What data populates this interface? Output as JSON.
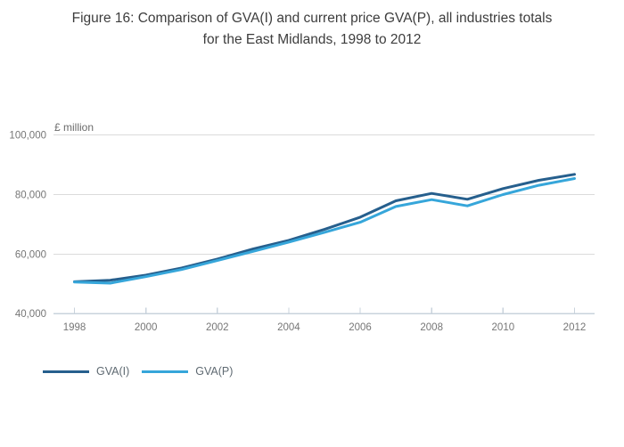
{
  "title": "Figure 16: Comparison of GVA(I) and current price GVA(P), all industries totals for the East Midlands, 1998 to 2012",
  "chart_data": {
    "type": "line",
    "title": "Figure 16: Comparison of GVA(I) and current price GVA(P), all industries totals for the East Midlands, 1998 to 2012",
    "y_axis_title": "£ million",
    "x": [
      1998,
      1999,
      2000,
      2001,
      2002,
      2003,
      2004,
      2005,
      2006,
      2007,
      2008,
      2009,
      2010,
      2011,
      2012
    ],
    "xtick_labels": [
      "1998",
      "2000",
      "2002",
      "2004",
      "2006",
      "2008",
      "2010",
      "2012"
    ],
    "ytick_values": [
      40000,
      60000,
      80000,
      100000
    ],
    "ytick_labels": [
      "40,000",
      "60,000",
      "80,000",
      "100,000"
    ],
    "ylim": [
      40000,
      100000
    ],
    "grid": "horizontal-only",
    "legend_position": "bottom-left",
    "series": [
      {
        "name": "GVA(I)",
        "color": "#265f8d",
        "values": [
          50700,
          51200,
          52900,
          55300,
          58300,
          61700,
          64600,
          68300,
          72400,
          77900,
          80400,
          78400,
          82000,
          84800,
          86800
        ]
      },
      {
        "name": "GVA(P)",
        "color": "#36a6da",
        "values": [
          50600,
          50200,
          52400,
          54800,
          57800,
          60900,
          64000,
          67300,
          70700,
          76000,
          78300,
          76200,
          80000,
          83100,
          85400
        ]
      }
    ],
    "colors": {
      "title_text": "#3d3d3d",
      "axis_line": "#c9d3dc",
      "gridline": "#dbdbdb",
      "tick_text": "#767676",
      "legend_text": "#5f6a72",
      "background": "#ffffff"
    }
  }
}
